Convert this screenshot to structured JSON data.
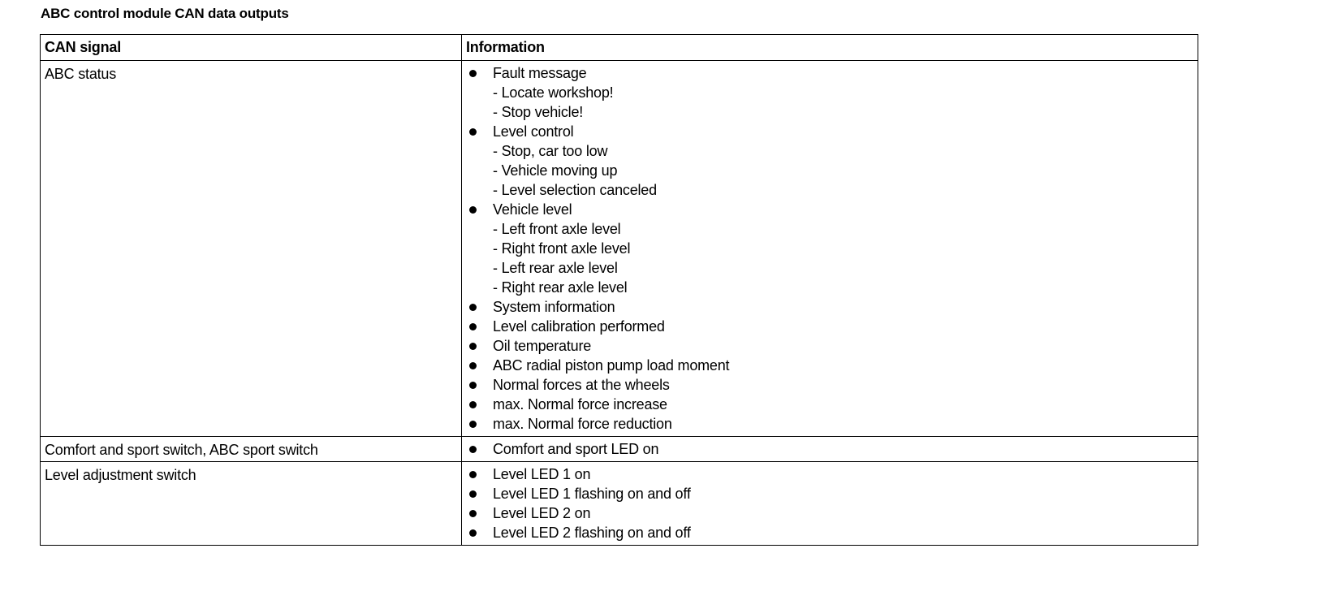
{
  "title": "ABC control module CAN data outputs",
  "table": {
    "headers": [
      "CAN signal",
      "Information"
    ],
    "rows": [
      {
        "signal": "ABC status",
        "info": [
          {
            "text": "Fault message",
            "bullet": true
          },
          {
            "text": "- Locate workshop!",
            "bullet": false
          },
          {
            "text": "- Stop vehicle!",
            "bullet": false
          },
          {
            "text": "Level control",
            "bullet": true
          },
          {
            "text": "- Stop, car too low",
            "bullet": false
          },
          {
            "text": "- Vehicle moving up",
            "bullet": false
          },
          {
            "text": "- Level selection canceled",
            "bullet": false
          },
          {
            "text": "Vehicle level",
            "bullet": true
          },
          {
            "text": "- Left front axle level",
            "bullet": false
          },
          {
            "text": "- Right front axle level",
            "bullet": false
          },
          {
            "text": "- Left rear axle level",
            "bullet": false
          },
          {
            "text": "- Right rear axle level",
            "bullet": false
          },
          {
            "text": "System information",
            "bullet": true
          },
          {
            "text": "Level calibration performed",
            "bullet": true
          },
          {
            "text": "Oil temperature",
            "bullet": true
          },
          {
            "text": "ABC radial piston pump load moment",
            "bullet": true
          },
          {
            "text": "Normal forces at the wheels",
            "bullet": true
          },
          {
            "text": "max. Normal force increase",
            "bullet": true
          },
          {
            "text": "max. Normal force reduction",
            "bullet": true
          }
        ]
      },
      {
        "signal": "Comfort and sport switch, ABC sport switch",
        "info": [
          {
            "text": "Comfort and sport LED on",
            "bullet": true
          }
        ]
      },
      {
        "signal": "Level adjustment switch",
        "info": [
          {
            "text": "Level LED 1 on",
            "bullet": true
          },
          {
            "text": "Level LED 1 flashing on and off",
            "bullet": true
          },
          {
            "text": "Level LED 2 on",
            "bullet": true
          },
          {
            "text": "Level LED 2 flashing on and off",
            "bullet": true
          }
        ]
      }
    ]
  }
}
